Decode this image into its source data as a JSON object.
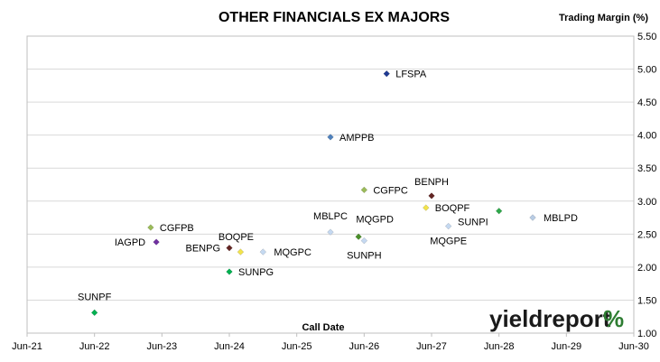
{
  "chart_data": {
    "type": "scatter",
    "title": "OTHER FINANCIALS EX MAJORS",
    "xlabel": "Call Date",
    "ylabel": "Trading Margin (%)",
    "ylim": [
      1.0,
      5.5
    ],
    "xlim": [
      "2021-06",
      "2030-06"
    ],
    "grid": "horizontal",
    "x_ticks": [
      "Jun-21",
      "Jun-22",
      "Jun-23",
      "Jun-24",
      "Jun-25",
      "Jun-26",
      "Jun-27",
      "Jun-28",
      "Jun-29",
      "Jun-30"
    ],
    "y_ticks": [
      "1.00",
      "1.50",
      "2.00",
      "2.50",
      "3.00",
      "3.50",
      "4.00",
      "4.50",
      "5.00",
      "5.50"
    ],
    "y_axis_side": "right",
    "points": [
      {
        "label": "LFSPA",
        "x": "2026-10",
        "y": 4.93,
        "color": "#1f3a93"
      },
      {
        "label": "AMPPB",
        "x": "2025-12",
        "y": 3.97,
        "color": "#4f81bd"
      },
      {
        "label": "CGFPC",
        "x": "2026-06",
        "y": 3.17,
        "color": "#9bbb59"
      },
      {
        "label": "BENPH",
        "x": "2027-06",
        "y": 3.08,
        "color": "#632523"
      },
      {
        "label": "BOQPF",
        "x": "2027-05",
        "y": 2.9,
        "color": "#f2e34c"
      },
      {
        "label": "SUNPI",
        "x": "2028-06",
        "y": 2.85,
        "color": "#2ea84a"
      },
      {
        "label": "MBLPD",
        "x": "2028-12",
        "y": 2.75,
        "color": "#b8cce4"
      },
      {
        "label": "MBLPC",
        "x": "2025-12",
        "y": 2.53,
        "color": "#c5d9f1"
      },
      {
        "label": "MQGPD",
        "x": "2026-05",
        "y": 2.46,
        "color": "#4a8f29"
      },
      {
        "label": "SUNPH",
        "x": "2026-06",
        "y": 2.4,
        "color": "#c5d9f1"
      },
      {
        "label": "MQGPE",
        "x": "2027-09",
        "y": 2.62,
        "color": "#c5d9f1"
      },
      {
        "label": "CGFPB",
        "x": "2023-04",
        "y": 2.6,
        "color": "#9bbb59"
      },
      {
        "label": "IAGPD",
        "x": "2023-05",
        "y": 2.38,
        "color": "#7030a0"
      },
      {
        "label": "BENPG",
        "x": "2024-06",
        "y": 2.29,
        "color": "#632523"
      },
      {
        "label": "BOQPE",
        "x": "2024-08",
        "y": 2.23,
        "color": "#f2e34c"
      },
      {
        "label": "MQGPC",
        "x": "2024-12",
        "y": 2.23,
        "color": "#c5d9f1"
      },
      {
        "label": "SUNPG",
        "x": "2024-06",
        "y": 1.93,
        "color": "#00b050"
      },
      {
        "label": "SUNPF",
        "x": "2022-06",
        "y": 1.31,
        "color": "#00b050"
      }
    ]
  },
  "brand": {
    "text": "yieldreport",
    "symbol": "%",
    "color_main": "#1a1a1a",
    "color_symbol_top": "#2e7d32",
    "color_symbol_bottom": "#c62828"
  }
}
